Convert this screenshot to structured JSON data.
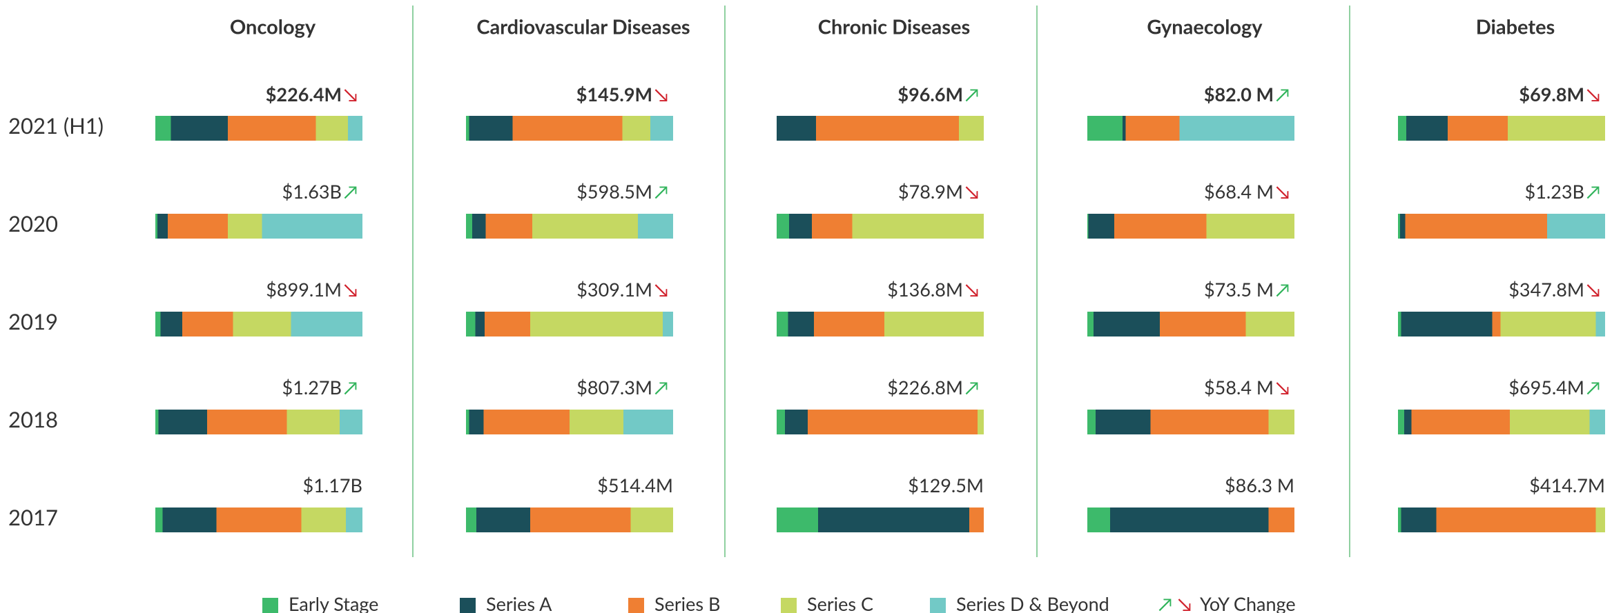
{
  "chart_data": {
    "type": "bar",
    "orientation": "horizontal",
    "stacked": "percent",
    "categories": [
      "2021 (H1)",
      "2020",
      "2019",
      "2018",
      "2017"
    ],
    "series": [
      {
        "name": "Early Stage",
        "color": "#3dba6b"
      },
      {
        "name": "Series A",
        "color": "#1b4f5a"
      },
      {
        "name": "Series B",
        "color": "#ef7f33"
      },
      {
        "name": "Series C",
        "color": "#c5d862"
      },
      {
        "name": "Series D & Beyond",
        "color": "#72c9c6"
      }
    ],
    "yoy_legend": {
      "symbols": [
        "↗",
        "↘"
      ],
      "label": "YoY Change"
    },
    "yoy_colors": {
      "↗": "#2fb35a",
      "↘": "#d0202b"
    },
    "panels": [
      {
        "title": "Oncology",
        "totals": [
          "$226.4M",
          "$1.63B",
          "$899.1M",
          "$1.27B",
          "$1.17B"
        ],
        "yoy": [
          "↘",
          "↗",
          "↘",
          "↗",
          null
        ],
        "series": [
          {
            "values": [
              7.5,
              1,
              2.5,
              1.5,
              3.5
            ]
          },
          {
            "values": [
              27.5,
              5,
              10.5,
              23.5,
              26
            ]
          },
          {
            "values": [
              42.5,
              29,
              24.5,
              38.5,
              41
            ]
          },
          {
            "values": [
              15.5,
              16.5,
              28,
              25.5,
              21.5
            ]
          },
          {
            "values": [
              7,
              48.5,
              34.5,
              11,
              8
            ]
          }
        ]
      },
      {
        "title": "Cardiovascular Diseases",
        "totals": [
          "$145.9M",
          "$598.5M",
          "$309.1M",
          "$807.3M",
          "$514.4M"
        ],
        "yoy": [
          "↘",
          "↗",
          "↘",
          "↗",
          null
        ],
        "series": [
          {
            "values": [
              1.5,
              3,
              4.5,
              1.5,
              5
            ]
          },
          {
            "values": [
              21,
              6.5,
              4.5,
              7,
              26
            ]
          },
          {
            "values": [
              53,
              22.5,
              22,
              41.5,
              48.5
            ]
          },
          {
            "values": [
              13.5,
              51,
              64,
              26,
              20.5
            ]
          },
          {
            "values": [
              11,
              17,
              5,
              24,
              0
            ]
          }
        ]
      },
      {
        "title": "Chronic Diseases",
        "totals": [
          "$96.6M",
          "$78.9M",
          "$136.8M",
          "$226.8M",
          "$129.5M"
        ],
        "yoy": [
          "↗",
          "↘",
          "↘",
          "↗",
          null
        ],
        "series": [
          {
            "values": [
              0,
              6,
              5.5,
              4,
              20
            ]
          },
          {
            "values": [
              19,
              11,
              12.5,
              11,
              73
            ]
          },
          {
            "values": [
              69,
              19.5,
              34,
              82,
              7
            ]
          },
          {
            "values": [
              12,
              63.5,
              48,
              3,
              0
            ]
          },
          {
            "values": [
              0,
              0,
              0,
              0,
              0
            ]
          }
        ]
      },
      {
        "title": "Gynaecology",
        "totals": [
          "$82.0 M",
          "$68.4 M",
          "$73.5 M",
          "$58.4 M",
          "$86.3 M"
        ],
        "yoy": [
          "↗",
          "↘",
          "↗",
          "↘",
          null
        ],
        "series": [
          {
            "values": [
              17,
              0.5,
              3,
              4,
              11
            ]
          },
          {
            "values": [
              1.5,
              12.5,
              32,
              26.5,
              76.5
            ]
          },
          {
            "values": [
              26,
              44.5,
              41.5,
              57,
              12.5
            ]
          },
          {
            "values": [
              0,
              42.5,
              23.5,
              12.5,
              0
            ]
          },
          {
            "values": [
              55.5,
              0,
              0,
              0,
              0
            ]
          }
        ]
      },
      {
        "title": "Diabetes",
        "totals": [
          "$69.8M",
          "$1.23B",
          "$347.8M",
          "$695.4M",
          "$414.7M"
        ],
        "yoy": [
          "↘",
          "↗",
          "↘",
          "↗",
          null
        ],
        "series": [
          {
            "values": [
              4,
              1,
              1.5,
              3,
              1.5
            ]
          },
          {
            "values": [
              20,
              2.5,
              44,
              3.5,
              17
            ]
          },
          {
            "values": [
              29,
              68.5,
              4,
              47.5,
              77
            ]
          },
          {
            "values": [
              47,
              0,
              46,
              38.5,
              4.5
            ]
          },
          {
            "values": [
              0,
              28,
              4.5,
              7.5,
              0
            ]
          }
        ]
      }
    ]
  }
}
